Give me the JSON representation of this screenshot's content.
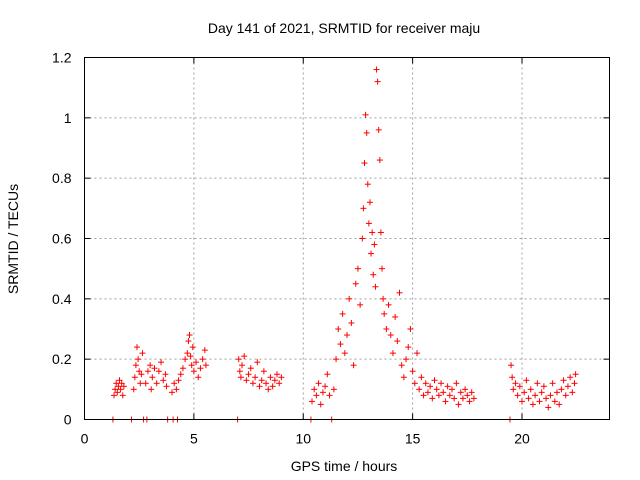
{
  "chart_data": {
    "type": "scatter",
    "title": "Day 141 of 2021, SRMTID for receiver maju",
    "xlabel": "GPS time / hours",
    "ylabel": "SRMTID / TECUs",
    "xlim": [
      0,
      24
    ],
    "ylim": [
      0,
      1.2
    ],
    "grid": true,
    "marker": "+",
    "colors": {
      "series": "#ff0000",
      "grid": "#a0a0a0",
      "axis": "#000000"
    },
    "x_ticks": [
      {
        "value": 0,
        "label": "0"
      },
      {
        "value": 5,
        "label": "5"
      },
      {
        "value": 10,
        "label": "10"
      },
      {
        "value": 15,
        "label": "15"
      },
      {
        "value": 20,
        "label": "20"
      }
    ],
    "y_ticks": [
      {
        "value": 0,
        "label": "0"
      },
      {
        "value": 0.2,
        "label": "0.2"
      },
      {
        "value": 0.4,
        "label": "0.4"
      },
      {
        "value": 0.6,
        "label": "0.6"
      },
      {
        "value": 0.8,
        "label": "0.8"
      },
      {
        "value": 1.0,
        "label": "1"
      },
      {
        "value": 1.2,
        "label": "1.2"
      }
    ],
    "series": [
      {
        "name": "SRMTID",
        "points": [
          [
            1.3,
            0.0
          ],
          [
            2.15,
            0.0
          ],
          [
            2.7,
            0.0
          ],
          [
            2.85,
            0.0
          ],
          [
            3.8,
            0.0
          ],
          [
            4.05,
            0.0
          ],
          [
            4.25,
            0.0
          ],
          [
            7.0,
            0.0
          ],
          [
            10.35,
            0.0
          ],
          [
            11.3,
            0.0
          ],
          [
            19.45,
            0.0
          ],
          [
            1.35,
            0.08
          ],
          [
            1.4,
            0.1
          ],
          [
            1.45,
            0.12
          ],
          [
            1.5,
            0.09
          ],
          [
            1.55,
            0.11
          ],
          [
            1.6,
            0.13
          ],
          [
            1.65,
            0.1
          ],
          [
            1.7,
            0.12
          ],
          [
            1.75,
            0.08
          ],
          [
            1.8,
            0.11
          ],
          [
            2.25,
            0.1
          ],
          [
            2.3,
            0.14
          ],
          [
            2.35,
            0.18
          ],
          [
            2.4,
            0.24
          ],
          [
            2.45,
            0.2
          ],
          [
            2.5,
            0.16
          ],
          [
            2.55,
            0.12
          ],
          [
            2.6,
            0.15
          ],
          [
            2.65,
            0.22
          ],
          [
            2.8,
            0.12
          ],
          [
            2.9,
            0.16
          ],
          [
            3.0,
            0.18
          ],
          [
            3.05,
            0.1
          ],
          [
            3.1,
            0.14
          ],
          [
            3.2,
            0.17
          ],
          [
            3.3,
            0.12
          ],
          [
            3.4,
            0.16
          ],
          [
            3.5,
            0.19
          ],
          [
            3.6,
            0.13
          ],
          [
            3.7,
            0.15
          ],
          [
            3.75,
            0.11
          ],
          [
            4.0,
            0.09
          ],
          [
            4.1,
            0.12
          ],
          [
            4.2,
            0.1
          ],
          [
            4.3,
            0.13
          ],
          [
            4.4,
            0.15
          ],
          [
            4.5,
            0.17
          ],
          [
            4.6,
            0.2
          ],
          [
            4.7,
            0.22
          ],
          [
            4.75,
            0.26
          ],
          [
            4.8,
            0.28
          ],
          [
            4.85,
            0.21
          ],
          [
            4.9,
            0.18
          ],
          [
            4.95,
            0.24
          ],
          [
            5.0,
            0.16
          ],
          [
            5.1,
            0.19
          ],
          [
            5.2,
            0.14
          ],
          [
            5.3,
            0.17
          ],
          [
            5.4,
            0.2
          ],
          [
            5.5,
            0.23
          ],
          [
            5.55,
            0.18
          ],
          [
            7.05,
            0.2
          ],
          [
            7.1,
            0.16
          ],
          [
            7.15,
            0.14
          ],
          [
            7.2,
            0.18
          ],
          [
            7.3,
            0.21
          ],
          [
            7.4,
            0.13
          ],
          [
            7.5,
            0.15
          ],
          [
            7.6,
            0.17
          ],
          [
            7.7,
            0.12
          ],
          [
            7.8,
            0.14
          ],
          [
            7.9,
            0.19
          ],
          [
            8.0,
            0.11
          ],
          [
            8.1,
            0.13
          ],
          [
            8.2,
            0.16
          ],
          [
            8.3,
            0.12
          ],
          [
            8.4,
            0.1
          ],
          [
            8.5,
            0.14
          ],
          [
            8.6,
            0.11
          ],
          [
            8.7,
            0.13
          ],
          [
            8.8,
            0.15
          ],
          [
            8.9,
            0.12
          ],
          [
            9.0,
            0.14
          ],
          [
            10.4,
            0.06
          ],
          [
            10.5,
            0.1
          ],
          [
            10.6,
            0.08
          ],
          [
            10.7,
            0.12
          ],
          [
            10.8,
            0.05
          ],
          [
            10.9,
            0.09
          ],
          [
            11.0,
            0.11
          ],
          [
            11.1,
            0.15
          ],
          [
            11.2,
            0.08
          ],
          [
            11.4,
            0.1
          ],
          [
            11.5,
            0.2
          ],
          [
            11.6,
            0.3
          ],
          [
            11.7,
            0.25
          ],
          [
            11.8,
            0.35
          ],
          [
            11.9,
            0.22
          ],
          [
            12.0,
            0.28
          ],
          [
            12.1,
            0.4
          ],
          [
            12.2,
            0.32
          ],
          [
            12.3,
            0.18
          ],
          [
            12.4,
            0.45
          ],
          [
            12.5,
            0.5
          ],
          [
            12.6,
            0.38
          ],
          [
            12.7,
            0.6
          ],
          [
            12.75,
            0.7
          ],
          [
            12.8,
            0.85
          ],
          [
            12.85,
            1.01
          ],
          [
            12.9,
            0.95
          ],
          [
            12.95,
            0.78
          ],
          [
            13.0,
            0.65
          ],
          [
            13.05,
            0.72
          ],
          [
            13.1,
            0.55
          ],
          [
            13.15,
            0.62
          ],
          [
            13.2,
            0.48
          ],
          [
            13.25,
            0.58
          ],
          [
            13.3,
            0.44
          ],
          [
            13.35,
            1.16
          ],
          [
            13.4,
            1.12
          ],
          [
            13.45,
            0.96
          ],
          [
            13.5,
            0.86
          ],
          [
            13.55,
            0.62
          ],
          [
            13.6,
            0.5
          ],
          [
            13.65,
            0.4
          ],
          [
            13.7,
            0.35
          ],
          [
            13.8,
            0.3
          ],
          [
            13.9,
            0.38
          ],
          [
            14.0,
            0.28
          ],
          [
            14.1,
            0.22
          ],
          [
            14.2,
            0.34
          ],
          [
            14.3,
            0.26
          ],
          [
            14.4,
            0.42
          ],
          [
            14.5,
            0.18
          ],
          [
            14.6,
            0.14
          ],
          [
            14.7,
            0.2
          ],
          [
            14.8,
            0.24
          ],
          [
            14.9,
            0.3
          ],
          [
            15.0,
            0.16
          ],
          [
            15.1,
            0.12
          ],
          [
            15.2,
            0.22
          ],
          [
            15.3,
            0.1
          ],
          [
            15.4,
            0.14
          ],
          [
            15.5,
            0.08
          ],
          [
            15.6,
            0.12
          ],
          [
            15.7,
            0.09
          ],
          [
            15.8,
            0.11
          ],
          [
            15.9,
            0.07
          ],
          [
            16.0,
            0.13
          ],
          [
            16.1,
            0.1
          ],
          [
            16.2,
            0.08
          ],
          [
            16.3,
            0.12
          ],
          [
            16.4,
            0.09
          ],
          [
            16.5,
            0.06
          ],
          [
            16.6,
            0.11
          ],
          [
            16.7,
            0.08
          ],
          [
            16.8,
            0.1
          ],
          [
            16.9,
            0.07
          ],
          [
            17.0,
            0.12
          ],
          [
            17.1,
            0.05
          ],
          [
            17.2,
            0.09
          ],
          [
            17.3,
            0.07
          ],
          [
            17.4,
            0.1
          ],
          [
            17.5,
            0.08
          ],
          [
            17.6,
            0.06
          ],
          [
            17.7,
            0.09
          ],
          [
            17.8,
            0.07
          ],
          [
            19.5,
            0.18
          ],
          [
            19.55,
            0.14
          ],
          [
            19.6,
            0.1
          ],
          [
            19.7,
            0.12
          ],
          [
            19.8,
            0.08
          ],
          [
            19.9,
            0.11
          ],
          [
            20.0,
            0.06
          ],
          [
            20.1,
            0.09
          ],
          [
            20.2,
            0.13
          ],
          [
            20.3,
            0.07
          ],
          [
            20.4,
            0.1
          ],
          [
            20.5,
            0.05
          ],
          [
            20.6,
            0.08
          ],
          [
            20.7,
            0.12
          ],
          [
            20.8,
            0.06
          ],
          [
            20.9,
            0.09
          ],
          [
            21.0,
            0.11
          ],
          [
            21.1,
            0.07
          ],
          [
            21.2,
            0.04
          ],
          [
            21.3,
            0.08
          ],
          [
            21.4,
            0.12
          ],
          [
            21.5,
            0.06
          ],
          [
            21.6,
            0.09
          ],
          [
            21.7,
            0.05
          ],
          [
            21.8,
            0.1
          ],
          [
            21.9,
            0.13
          ],
          [
            22.0,
            0.08
          ],
          [
            22.1,
            0.11
          ],
          [
            22.2,
            0.14
          ],
          [
            22.3,
            0.09
          ],
          [
            22.4,
            0.12
          ],
          [
            22.45,
            0.15
          ]
        ]
      }
    ]
  }
}
